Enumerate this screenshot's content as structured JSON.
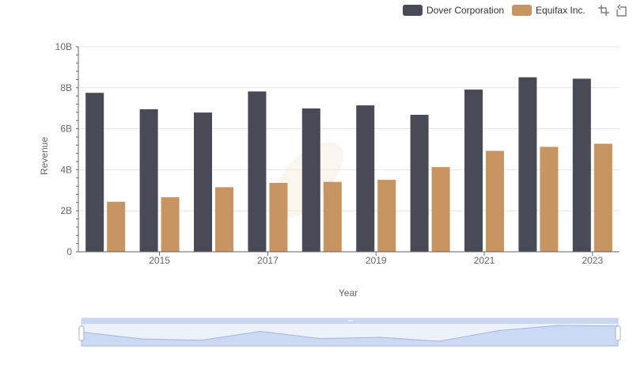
{
  "legend": {
    "series_1": "Dover Corporation",
    "series_2": "Equifax Inc."
  },
  "toolbox": {
    "zoom_icon": "zoom-icon",
    "restore_icon": "restore-icon"
  },
  "colors": {
    "series_1": "#4a4a56",
    "series_2": "#c89461",
    "dataZoom_fill": "#d7e2f8",
    "dataZoom_border": "#c6d0e8"
  },
  "chart_data": {
    "type": "bar",
    "xlabel": "Year",
    "ylabel": "Revenue",
    "x_tick_labels": [
      "2015",
      "2017",
      "2019",
      "2021",
      "2023"
    ],
    "y_tick_labels": [
      "0",
      "2B",
      "4B",
      "6B",
      "8B",
      "10B"
    ],
    "ylim": [
      0,
      10000000000
    ],
    "categories": [
      "2014",
      "2015",
      "2016",
      "2017",
      "2018",
      "2019",
      "2020",
      "2021",
      "2022",
      "2023"
    ],
    "series": [
      {
        "name": "Dover Corporation",
        "values": [
          7750000000,
          6950000000,
          6790000000,
          7820000000,
          6990000000,
          7140000000,
          6680000000,
          7910000000,
          8510000000,
          8440000000
        ]
      },
      {
        "name": "Equifax Inc.",
        "values": [
          2440000000,
          2660000000,
          3150000000,
          3360000000,
          3410000000,
          3510000000,
          4130000000,
          4920000000,
          5120000000,
          5270000000
        ]
      }
    ],
    "grid": true,
    "legend_position": "top-right",
    "has_data_zoom_slider": true
  }
}
